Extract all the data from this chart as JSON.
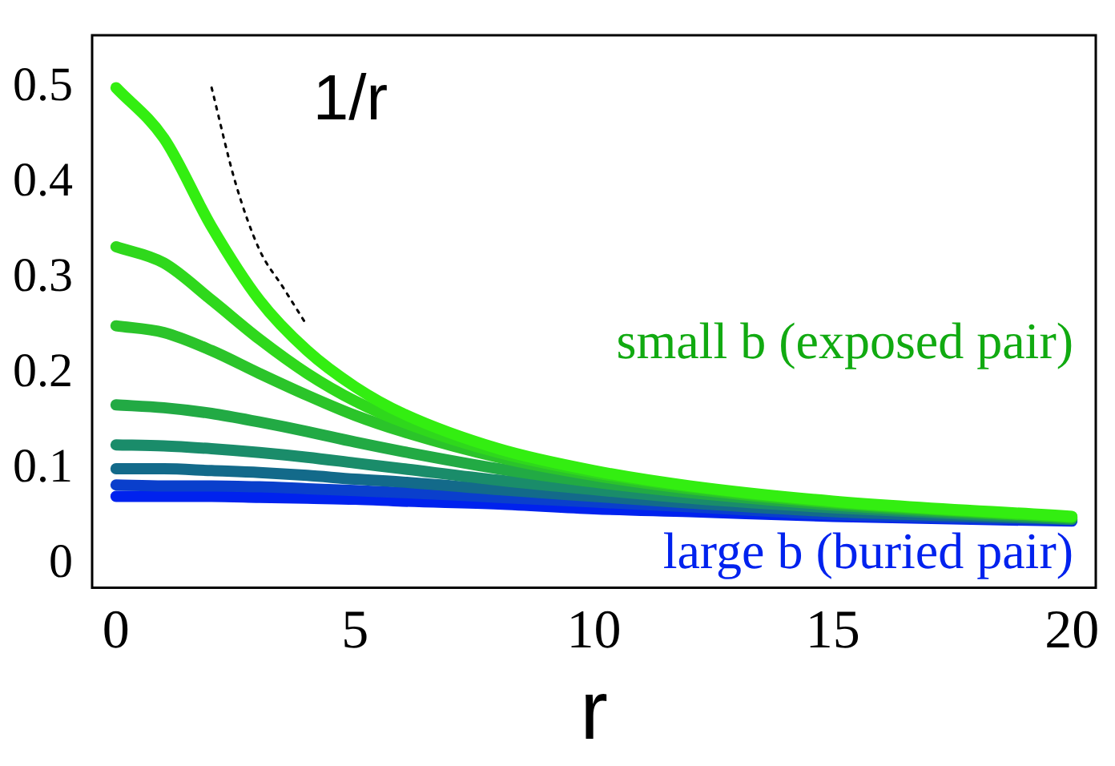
{
  "chart_data": {
    "type": "line",
    "xlabel": "r",
    "x": [
      0,
      1,
      2,
      3,
      4,
      5,
      6,
      8,
      10,
      12,
      15,
      20
    ],
    "xlim": [
      -0.5,
      20.5
    ],
    "ylim": [
      -0.025,
      0.555
    ],
    "xticks": [
      0,
      5,
      10,
      15,
      20
    ],
    "yticks": [
      0,
      0.1,
      0.2,
      0.3,
      0.4,
      0.5
    ],
    "grid": false,
    "legend": false,
    "marker": "none",
    "series": [
      {
        "color": "#33ee11",
        "values": [
          0.5,
          0.447,
          0.354,
          0.277,
          0.224,
          0.186,
          0.158,
          0.121,
          0.098,
          0.082,
          0.066,
          0.05
        ]
      },
      {
        "color": "#2fd81c",
        "values": [
          0.333,
          0.316,
          0.277,
          0.236,
          0.2,
          0.171,
          0.149,
          0.117,
          0.096,
          0.081,
          0.065,
          0.049
        ]
      },
      {
        "color": "#2bc42a",
        "values": [
          0.25,
          0.243,
          0.224,
          0.2,
          0.177,
          0.156,
          0.139,
          0.112,
          0.093,
          0.079,
          0.064,
          0.049
        ]
      },
      {
        "color": "#22aa44",
        "values": [
          0.167,
          0.164,
          0.158,
          0.149,
          0.139,
          0.128,
          0.118,
          0.1,
          0.086,
          0.075,
          0.062,
          0.048
        ]
      },
      {
        "color": "#1a8c6a",
        "values": [
          0.125,
          0.124,
          0.121,
          0.117,
          0.112,
          0.106,
          0.1,
          0.088,
          0.078,
          0.069,
          0.059,
          0.047
        ]
      },
      {
        "color": "#136a8a",
        "values": [
          0.1,
          0.1,
          0.098,
          0.096,
          0.093,
          0.089,
          0.086,
          0.078,
          0.071,
          0.064,
          0.055,
          0.047
        ]
      },
      {
        "color": "#0a3fcc",
        "values": [
          0.083,
          0.082,
          0.082,
          0.081,
          0.079,
          0.077,
          0.075,
          0.07,
          0.065,
          0.06,
          0.052,
          0.046
        ]
      },
      {
        "color": "#0022ee",
        "values": [
          0.071,
          0.071,
          0.071,
          0.07,
          0.069,
          0.068,
          0.066,
          0.063,
          0.058,
          0.055,
          0.05,
          0.045
        ]
      },
      {
        "color": "#000000",
        "line_style": "dotted",
        "x": [
          2,
          2.5,
          3,
          3.5,
          4
        ],
        "values": [
          0.5,
          0.4,
          0.33,
          0.29,
          0.25
        ]
      }
    ],
    "annotations": [
      "1/r",
      "small b (exposed pair)",
      "large b (buried pair)"
    ]
  }
}
